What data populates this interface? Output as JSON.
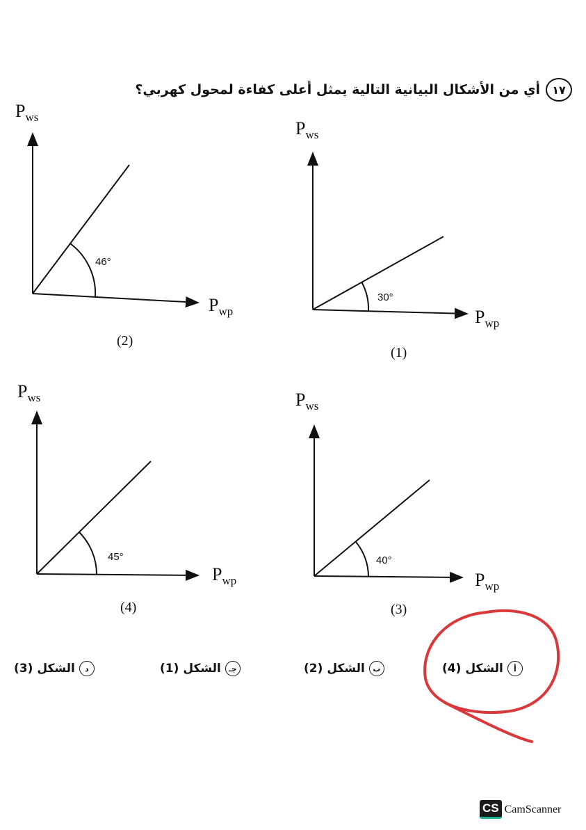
{
  "question": {
    "number": "١٧",
    "text": "أي من الأشكال البيانية التالية يمثل أعلى كفاءة لمحول كهربي؟"
  },
  "axis_labels": {
    "y_main": "P",
    "y_sub": "ws",
    "x_main": "P",
    "x_sub": "wp"
  },
  "figures": [
    {
      "caption": "(2)",
      "angle_label": "46°",
      "angle_deg": 46
    },
    {
      "caption": "(1)",
      "angle_label": "30°",
      "angle_deg": 30
    },
    {
      "caption": "(4)",
      "angle_label": "45°",
      "angle_deg": 45
    },
    {
      "caption": "(3)",
      "angle_label": "40°",
      "angle_deg": 40
    }
  ],
  "options": [
    {
      "letter": "أ",
      "text": "الشكل (4)",
      "selected": true
    },
    {
      "letter": "ب",
      "text": "الشكل (2)",
      "selected": false
    },
    {
      "letter": "جـ",
      "text": "الشكل (1)",
      "selected": false
    },
    {
      "letter": "د",
      "text": "الشكل (3)",
      "selected": false
    }
  ],
  "annotation_color": "#d9393a",
  "watermark": "CamScanner",
  "watermark_logo": "CS"
}
